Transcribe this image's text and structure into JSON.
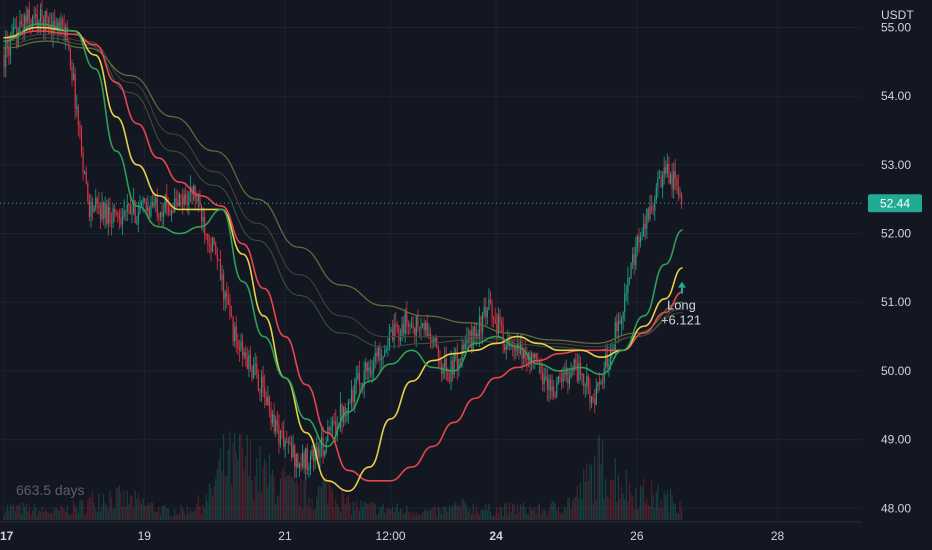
{
  "chart_data": {
    "type": "line",
    "title": "",
    "xlabel": "",
    "ylabel": "",
    "unit": "USDT",
    "ylim": [
      47.8,
      55.4
    ],
    "x_range_days": [
      16.95,
      29.2
    ],
    "y_ticks": [
      "55.00",
      "54.00",
      "53.00",
      "52.00",
      "51.00",
      "50.00",
      "49.00",
      "48.00"
    ],
    "x_ticks": [
      {
        "label": "17",
        "day": 17.0,
        "bold": true
      },
      {
        "label": "19",
        "day": 19.0,
        "bold": false
      },
      {
        "label": "21",
        "day": 21.0,
        "bold": false
      },
      {
        "label": "12:00",
        "day": 22.5,
        "bold": false
      },
      {
        "label": "24",
        "day": 24.0,
        "bold": true
      },
      {
        "label": "26",
        "day": 26.0,
        "bold": false
      },
      {
        "label": "28",
        "day": 28.0,
        "bold": false
      }
    ],
    "last_price": {
      "value": 52.44,
      "label": "52.44",
      "color": "#22ab94"
    },
    "date_range_label": "663.5 days",
    "annotation": {
      "line1": "Long",
      "line2": "+6.121",
      "day": 26.4,
      "price": 50.95
    },
    "colors": {
      "background": "#131722",
      "grid": "#1e222d",
      "up": "#22ab94",
      "down": "#f23645"
    },
    "price": {
      "x": [
        17.0,
        17.3,
        17.6,
        17.9,
        18.2,
        18.5,
        18.8,
        19.1,
        19.4,
        19.7,
        20.0,
        20.3,
        20.6,
        20.9,
        21.2,
        21.5,
        21.8,
        22.1,
        22.4,
        22.7,
        23.0,
        23.3,
        23.6,
        23.9,
        24.2,
        24.5,
        24.8,
        25.1,
        25.4,
        25.7,
        26.0,
        26.3,
        26.45,
        26.65
      ],
      "y": [
        54.6,
        55.1,
        55.1,
        54.9,
        52.4,
        52.3,
        52.3,
        52.4,
        52.4,
        52.6,
        51.7,
        50.4,
        49.9,
        49.1,
        48.65,
        48.85,
        49.4,
        49.95,
        50.35,
        50.7,
        50.6,
        49.95,
        50.4,
        50.9,
        50.3,
        50.2,
        49.7,
        50.1,
        49.55,
        50.6,
        51.8,
        52.7,
        52.9,
        52.44
      ]
    },
    "series": [
      {
        "name": "",
        "color": "#2e9e59",
        "width": 1.6,
        "x": [
          17.0,
          17.5,
          18.0,
          18.3,
          18.6,
          18.9,
          19.2,
          19.5,
          19.8,
          20.1,
          20.4,
          20.7,
          21.0,
          21.3,
          21.6,
          21.9,
          22.2,
          22.5,
          22.8,
          23.1,
          23.4,
          23.7,
          24.0,
          24.3,
          24.6,
          24.9,
          25.2,
          25.5,
          25.8,
          26.1,
          26.4,
          26.65
        ],
        "y": [
          54.8,
          55.05,
          54.95,
          54.4,
          53.2,
          52.4,
          52.1,
          52.0,
          52.1,
          52.35,
          51.3,
          50.5,
          49.9,
          49.3,
          48.9,
          49.4,
          49.85,
          50.1,
          50.3,
          50.05,
          50.0,
          50.4,
          50.5,
          50.35,
          50.1,
          50.0,
          50.05,
          49.95,
          50.3,
          50.8,
          51.55,
          52.05
        ]
      },
      {
        "name": "",
        "color": "#e8d04a",
        "width": 1.6,
        "x": [
          17.0,
          17.5,
          18.0,
          18.3,
          18.6,
          18.9,
          19.2,
          19.5,
          19.8,
          20.1,
          20.4,
          20.7,
          21.0,
          21.3,
          21.6,
          21.9,
          22.2,
          22.5,
          22.8,
          23.1,
          23.4,
          23.7,
          24.0,
          24.3,
          24.6,
          24.9,
          25.2,
          25.5,
          25.8,
          26.1,
          26.4,
          26.65
        ],
        "y": [
          54.85,
          55.0,
          54.95,
          54.6,
          53.7,
          53.0,
          52.55,
          52.35,
          52.35,
          52.35,
          51.7,
          50.8,
          49.9,
          49.1,
          48.4,
          48.25,
          48.6,
          49.3,
          49.85,
          50.15,
          50.25,
          50.3,
          50.4,
          50.5,
          50.4,
          50.3,
          50.3,
          50.2,
          50.3,
          50.65,
          51.05,
          51.5
        ]
      },
      {
        "name": "",
        "color": "#e6454f",
        "width": 1.6,
        "x": [
          17.0,
          17.5,
          18.0,
          18.3,
          18.6,
          18.9,
          19.2,
          19.5,
          19.8,
          20.1,
          20.4,
          20.7,
          21.0,
          21.3,
          21.6,
          21.9,
          22.2,
          22.5,
          22.8,
          23.1,
          23.4,
          23.7,
          24.0,
          24.3,
          24.6,
          24.9,
          25.2,
          25.5,
          25.8,
          26.1,
          26.4,
          26.65
        ],
        "y": [
          54.85,
          54.95,
          54.9,
          54.75,
          54.2,
          53.6,
          53.1,
          52.75,
          52.55,
          52.4,
          51.85,
          51.2,
          50.5,
          49.8,
          49.1,
          48.55,
          48.4,
          48.4,
          48.6,
          48.9,
          49.25,
          49.6,
          49.9,
          50.05,
          50.15,
          50.25,
          50.3,
          50.3,
          50.3,
          50.55,
          50.85,
          51.15
        ]
      },
      {
        "name": "",
        "color": "#5e6b3a",
        "width": 1.3,
        "x": [
          17.0,
          17.6,
          18.2,
          18.8,
          19.4,
          20.0,
          20.6,
          21.2,
          21.8,
          22.4,
          23.0,
          23.6,
          24.2,
          24.8,
          25.4,
          26.0,
          26.65
        ],
        "y": [
          54.7,
          54.8,
          54.7,
          54.3,
          53.7,
          53.2,
          52.5,
          51.8,
          51.25,
          50.95,
          50.8,
          50.7,
          50.55,
          50.45,
          50.4,
          50.55,
          51.0
        ]
      },
      {
        "name": "",
        "color": "#3a4f3c",
        "width": 1.1,
        "x": [
          17.0,
          17.6,
          18.2,
          18.8,
          19.4,
          20.0,
          20.6,
          21.2,
          21.8,
          22.4,
          23.0,
          23.6,
          24.2,
          24.8,
          25.4,
          26.0,
          26.65
        ],
        "y": [
          54.75,
          54.85,
          54.75,
          54.05,
          53.2,
          52.7,
          51.9,
          51.1,
          50.55,
          50.35,
          50.4,
          50.45,
          50.4,
          50.35,
          50.3,
          50.5,
          50.9
        ]
      },
      {
        "name": "",
        "color": "#4a3d39",
        "width": 1.1,
        "x": [
          17.0,
          17.6,
          18.2,
          18.8,
          19.4,
          20.0,
          20.6,
          21.2,
          21.8,
          22.4,
          23.0,
          23.6,
          24.2,
          24.8,
          25.4,
          26.0,
          26.65
        ],
        "y": [
          54.8,
          54.9,
          54.8,
          54.2,
          53.45,
          52.9,
          52.15,
          51.4,
          50.8,
          50.5,
          50.5,
          50.5,
          50.45,
          50.4,
          50.35,
          50.5,
          50.85
        ]
      }
    ],
    "volume": {
      "x": [
        17.2,
        17.7,
        18.1,
        18.4,
        18.9,
        19.3,
        19.6,
        19.9,
        20.1,
        20.4,
        20.7,
        21.1,
        21.4,
        21.6,
        21.9,
        22.3,
        22.7,
        23.1,
        23.5,
        23.9,
        24.3,
        24.7,
        25.1,
        25.45,
        25.65,
        25.9,
        26.2,
        26.45
      ],
      "height": [
        0.12,
        0.08,
        0.14,
        0.25,
        0.18,
        0.09,
        0.1,
        0.2,
        0.55,
        0.6,
        0.45,
        0.3,
        0.22,
        0.35,
        0.15,
        0.12,
        0.1,
        0.08,
        0.14,
        0.1,
        0.12,
        0.1,
        0.2,
        0.55,
        0.48,
        0.3,
        0.25,
        0.2
      ]
    }
  }
}
